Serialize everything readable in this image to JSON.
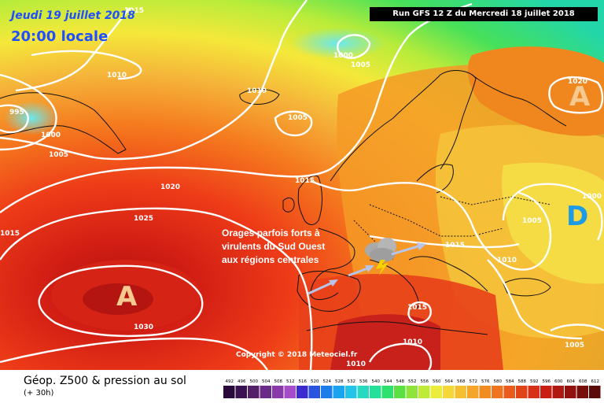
{
  "header": {
    "date": "Jeudi 19 juillet 2018",
    "hour": "20:00 locale",
    "run": "Run GFS 12 Z du Mercredi 18 juillet 2018"
  },
  "map": {
    "pressure_labels": [
      "1015",
      "1010",
      "995",
      "1000",
      "1005",
      "1010",
      "1005",
      "1000",
      "1005",
      "1020",
      "1025",
      "1030",
      "1015",
      "1015",
      "1005",
      "1000",
      "1010",
      "1015",
      "1010",
      "1010",
      "1005",
      "1015",
      "1020"
    ],
    "centers": [
      {
        "label": "A",
        "type": "anticyclone"
      },
      {
        "label": "A",
        "type": "anticyclone"
      },
      {
        "label": "D",
        "type": "depression"
      }
    ],
    "annotation_lines": [
      "Orages parfois forts à",
      "virulents du Sud Ouest",
      "aux régions centrales"
    ],
    "copyright": "Copyright © 2018 Meteociel.fr",
    "colors": {
      "low": "#2fe05a",
      "mid": "#f5e83a",
      "high": "#f07a1e",
      "peak": "#c81e14",
      "isobar": "#ffffff",
      "anticyclone_label": "#f5c98f",
      "depression_label": "#1e9be6"
    }
  },
  "footer": {
    "caption": "Géop. Z500 & pression au sol",
    "subcaption": "(+ 30h)",
    "scale_values": [
      "492",
      "496",
      "500",
      "504",
      "508",
      "512",
      "516",
      "520",
      "524",
      "528",
      "532",
      "536",
      "540",
      "544",
      "548",
      "552",
      "556",
      "560",
      "564",
      "568",
      "572",
      "576",
      "580",
      "584",
      "588",
      "592",
      "596",
      "600",
      "604",
      "608",
      "612"
    ],
    "scale_colors": [
      "#2a0a3a",
      "#3a1250",
      "#55206a",
      "#6a2a88",
      "#8a3aa8",
      "#a54cc8",
      "#3a2ad0",
      "#2a54e0",
      "#1e7ce8",
      "#1aa4f0",
      "#24c4e8",
      "#28d8c0",
      "#26e09a",
      "#2ee070",
      "#5ae040",
      "#8ee43a",
      "#c0ea38",
      "#ecec3a",
      "#f5d838",
      "#f5c030",
      "#f5a62a",
      "#f08c22",
      "#ee7420",
      "#ea5c1c",
      "#e2441a",
      "#d63018",
      "#c81e14",
      "#b01812",
      "#921210",
      "#760e0c",
      "#5a0a08"
    ]
  }
}
